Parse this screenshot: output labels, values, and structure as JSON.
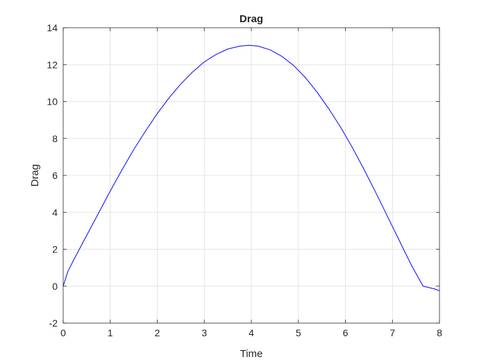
{
  "chart_data": {
    "type": "line",
    "title": "Drag",
    "xlabel": "Time",
    "ylabel": "Drag",
    "xlim": [
      0,
      8
    ],
    "ylim": [
      -2,
      14
    ],
    "xticks": [
      0,
      1,
      2,
      3,
      4,
      5,
      6,
      7,
      8
    ],
    "yticks": [
      -2,
      0,
      2,
      4,
      6,
      8,
      10,
      12,
      14
    ],
    "grid": true,
    "series": [
      {
        "color": "#0000ff",
        "x": [
          0,
          0.1,
          0.25,
          0.5,
          0.75,
          1,
          1.25,
          1.5,
          1.75,
          2,
          2.25,
          2.5,
          2.75,
          3,
          3.25,
          3.5,
          3.75,
          3.95,
          4.15,
          4.4,
          4.65,
          4.9,
          5.15,
          5.4,
          5.65,
          5.9,
          6.15,
          6.4,
          6.65,
          6.9,
          7.15,
          7.4,
          7.65,
          7.9,
          8
        ],
        "y": [
          0,
          0.8,
          1.55,
          2.75,
          3.95,
          5.15,
          6.3,
          7.4,
          8.4,
          9.35,
          10.2,
          10.95,
          11.6,
          12.15,
          12.55,
          12.85,
          13.0,
          13.05,
          13.0,
          12.8,
          12.45,
          11.95,
          11.3,
          10.5,
          9.6,
          8.6,
          7.5,
          6.3,
          5.05,
          3.75,
          2.45,
          1.15,
          0.0,
          -0.15,
          -0.25
        ]
      }
    ]
  }
}
